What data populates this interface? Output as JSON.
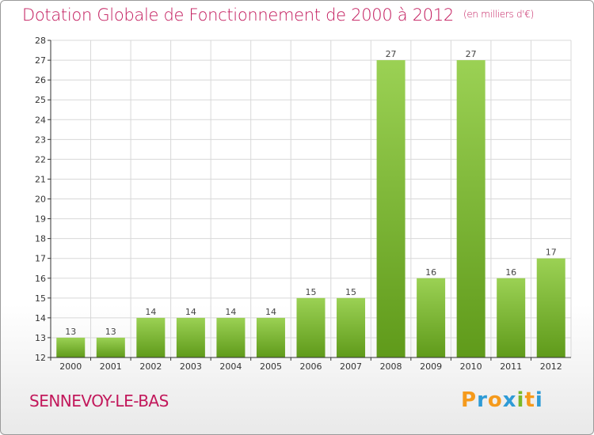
{
  "chart_data": {
    "type": "bar",
    "title": "Dotation Globale de Fonctionnement de 2000 à 2012",
    "subtitle": "(en milliers d'€)",
    "categories": [
      "2000",
      "2001",
      "2002",
      "2003",
      "2004",
      "2005",
      "2006",
      "2007",
      "2008",
      "2009",
      "2010",
      "2011",
      "2012"
    ],
    "values": [
      13,
      13,
      14,
      14,
      14,
      14,
      15,
      15,
      27,
      16,
      27,
      16,
      17
    ],
    "ylim": [
      12,
      28
    ],
    "yticks": [
      12,
      13,
      14,
      15,
      16,
      17,
      18,
      19,
      20,
      21,
      22,
      23,
      24,
      25,
      26,
      27,
      28
    ],
    "grid": true,
    "xlabel": "",
    "ylabel": ""
  },
  "footer": {
    "commune": "SENNEVOY-LE-BAS",
    "brand": "Proxiti",
    "brand_letters": [
      "P",
      "r",
      "o",
      "x",
      "i",
      "t",
      "i"
    ]
  },
  "colors": {
    "title": "#c2185b",
    "bar_top": "#9bd154",
    "bar_bottom": "#5f9a1a",
    "grid": "#d8d8d8",
    "axis": "#333333",
    "brand_letters": [
      "#f59a1c",
      "#2e9bd6",
      "#f59a1c",
      "#2e9bd6",
      "#7ab828",
      "#f59a1c",
      "#2e9bd6"
    ]
  }
}
